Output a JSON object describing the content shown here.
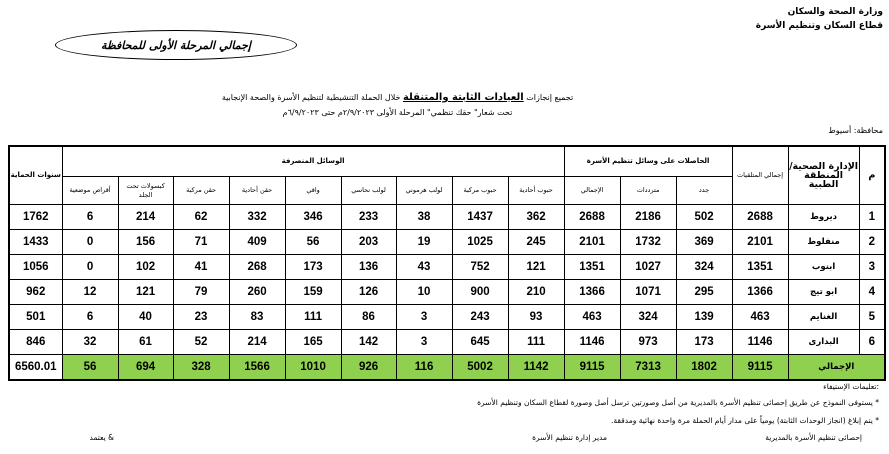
{
  "header": {
    "ministry": "وزارة الصحة والسكان",
    "sector": "قطاع السكان وتنظيم الأسرة",
    "badge": "إجمالي المرحلة الأولى للمحافظة"
  },
  "title": {
    "line1_prefix": "تجميع إنجازات ",
    "line1_emph": "العيادات الثابتة والمتنقلة",
    "line1_suffix": " خلال الحملة التنشيطية لتنظيم الأسرة والصحة الإنجابية",
    "line2": "تحت شعار\" حقك تنظمي\" المرحلة الأولى ٢/٩/٢٠٢٣م حتى ٦/٩/٢٠٢٣م",
    "governorate": "محافظة: أسيوط"
  },
  "table": {
    "headers": {
      "num": "م",
      "region": "الإدارة الصحية/ المنطقة الطبية",
      "total_recipients": "إجمالي المتلقيات",
      "group_recipients": "الحاصلات على وسائل تنظيم الأسرة",
      "new": "جدد",
      "repeat": "مترددات",
      "total": "الإجمالي",
      "group_methods": "الوسائل المنصرفة",
      "pills_single": "حبوب أحادية",
      "pills_combined": "حبوب مركبة",
      "iud_hormonal": "لولب هرموني",
      "iud_copper": "لولب نحاسي",
      "condom": "واقي",
      "inj_single": "حقن أحادية",
      "inj_combined": "حقن مركبة",
      "implants": "كبسولات تحت الجلد",
      "local_tabs": "أقراص موضعية",
      "protection_years": "سنوات الحماية"
    },
    "rows": [
      [
        "1",
        "ديروط",
        "2688",
        "502",
        "2186",
        "2688",
        "362",
        "1437",
        "38",
        "233",
        "346",
        "332",
        "62",
        "214",
        "6",
        "1762"
      ],
      [
        "2",
        "منفلوط",
        "2101",
        "369",
        "1732",
        "2101",
        "245",
        "1025",
        "19",
        "203",
        "56",
        "409",
        "71",
        "156",
        "0",
        "1433"
      ],
      [
        "3",
        "ابنوب",
        "1351",
        "324",
        "1027",
        "1351",
        "121",
        "752",
        "43",
        "136",
        "173",
        "268",
        "41",
        "102",
        "0",
        "1056"
      ],
      [
        "4",
        "ابو تيج",
        "1366",
        "295",
        "1071",
        "1366",
        "210",
        "900",
        "10",
        "126",
        "159",
        "260",
        "79",
        "121",
        "12",
        "962"
      ],
      [
        "5",
        "الغنايم",
        "463",
        "139",
        "324",
        "463",
        "93",
        "243",
        "3",
        "86",
        "111",
        "83",
        "23",
        "40",
        "6",
        "501"
      ],
      [
        "6",
        "البدارى",
        "1146",
        "173",
        "973",
        "1146",
        "111",
        "645",
        "3",
        "142",
        "165",
        "214",
        "52",
        "61",
        "32",
        "846"
      ]
    ],
    "total_row": [
      "الإجمالي",
      "9115",
      "1802",
      "7313",
      "9115",
      "1142",
      "5002",
      "116",
      "926",
      "1010",
      "1566",
      "328",
      "694",
      "56",
      "6560.01"
    ],
    "total_color": "#8fd14f"
  },
  "notes": {
    "heading": ":تعليمات الإستيفاء",
    "n1": "* يستوفى النموذج عن طريق إحصائى تنظيم الأسرة بالمديرية من أصل وصورتين ترسل أصل وصورة لقطاع السكان وتنظيم الأسرة",
    "n2": "* يتم إبلاغ (انجاز الوحدات الثابتة) يومياً على مدار أيام الحملة مرة واحدة نهائية ومدققة.",
    "sig1": "إحصائى تنظيم الأسرة بالمديرية",
    "sig2": "مدير إدارة تنظيم الأسرة",
    "sig3": "& يعتمد"
  }
}
